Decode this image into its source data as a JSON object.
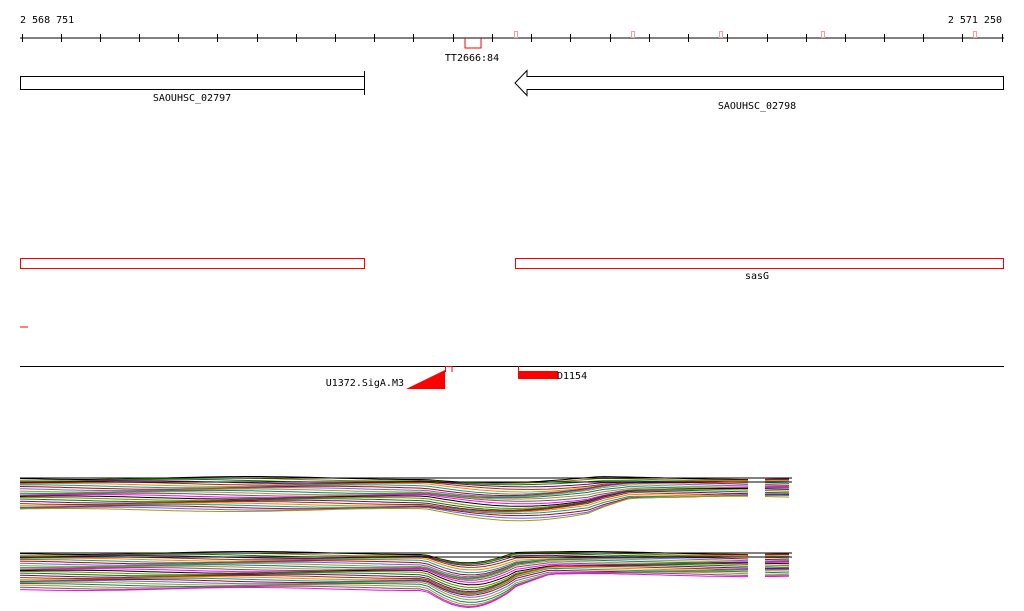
{
  "ruler": {
    "start_label": "2 568 751",
    "end_label": "2 571 250",
    "start_coord": 2568751,
    "end_coord": 2571250
  },
  "terminator": {
    "label": "TT2666:84"
  },
  "genes": [
    {
      "name": "SAOUHSC_02797",
      "strand": "+"
    },
    {
      "name": "SAOUHSC_02798",
      "strand": "-"
    }
  ],
  "regions": [
    {
      "name": ""
    },
    {
      "name": "sasG"
    }
  ],
  "promoter": {
    "label": "U1372.SigA.M3"
  },
  "feature": {
    "label": "D1154"
  },
  "colors": {
    "annotation_red": "#ff0000",
    "terminator_pink": "#e8a0a0",
    "axis": "#000000"
  },
  "expression_track_palette": [
    "#000000",
    "#808000",
    "#008000",
    "#800080",
    "#804000",
    "#ff8000",
    "#00a0a0",
    "#c00000",
    "#6060ff",
    "#a0a000",
    "#008080",
    "#c08040",
    "#606060",
    "#ff00ff"
  ]
}
